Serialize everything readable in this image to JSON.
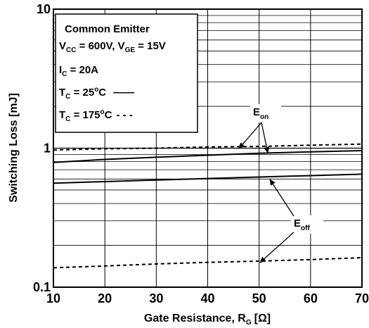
{
  "chart_data": {
    "type": "line",
    "xlabel": "Gate Resistance, R",
    "xlabel_sub": "G",
    "xlabel_unit": "[Ω]",
    "ylabel": "Switching Loss [mJ]",
    "xlim": [
      10,
      70
    ],
    "ylim": [
      0.1,
      10
    ],
    "yscale": "log",
    "grid": true,
    "x_ticks": [
      "10",
      "20",
      "30",
      "40",
      "50",
      "60",
      "70"
    ],
    "y_ticks": [
      "0.1",
      "1",
      "10"
    ],
    "series": [
      {
        "style": "dashed",
        "x": [
          10,
          20,
          30,
          40,
          50,
          60,
          70
        ],
        "y": [
          0.97,
          0.99,
          1.0,
          1.02,
          1.03,
          1.05,
          1.07
        ]
      },
      {
        "style": "solid",
        "x": [
          10,
          20,
          30,
          40,
          50,
          60,
          70
        ],
        "y": [
          0.79,
          0.83,
          0.86,
          0.89,
          0.92,
          0.94,
          0.96
        ]
      },
      {
        "style": "solid",
        "x": [
          10,
          20,
          30,
          40,
          50,
          60,
          70
        ],
        "y": [
          0.56,
          0.575,
          0.59,
          0.605,
          0.62,
          0.635,
          0.65
        ]
      },
      {
        "style": "dashed",
        "x": [
          10,
          20,
          30,
          40,
          50,
          60,
          70
        ],
        "y": [
          0.138,
          0.142,
          0.147,
          0.151,
          0.154,
          0.158,
          0.163
        ]
      }
    ],
    "legend_box": {
      "title": "Common Emitter",
      "line1": {
        "a": "V",
        "a_sub": "CC",
        "b": " = 600V, V",
        "b_sub": "GE",
        "c": " = 15V"
      },
      "line2": {
        "a": "I",
        "a_sub": "C",
        "b": " = 20A"
      },
      "line3": {
        "a": "T",
        "a_sub": "C",
        "b": " = 25",
        "sup": "o",
        "c": "C",
        "mark": "——"
      },
      "line4": {
        "a": "T",
        "a_sub": "C",
        "b": " = 175",
        "sup": "o",
        "c": "C",
        "mark": "- - -"
      }
    },
    "annotations": {
      "eon": {
        "base": "E",
        "sub": "on"
      },
      "eoff": {
        "base": "E",
        "sub": "off"
      }
    }
  }
}
